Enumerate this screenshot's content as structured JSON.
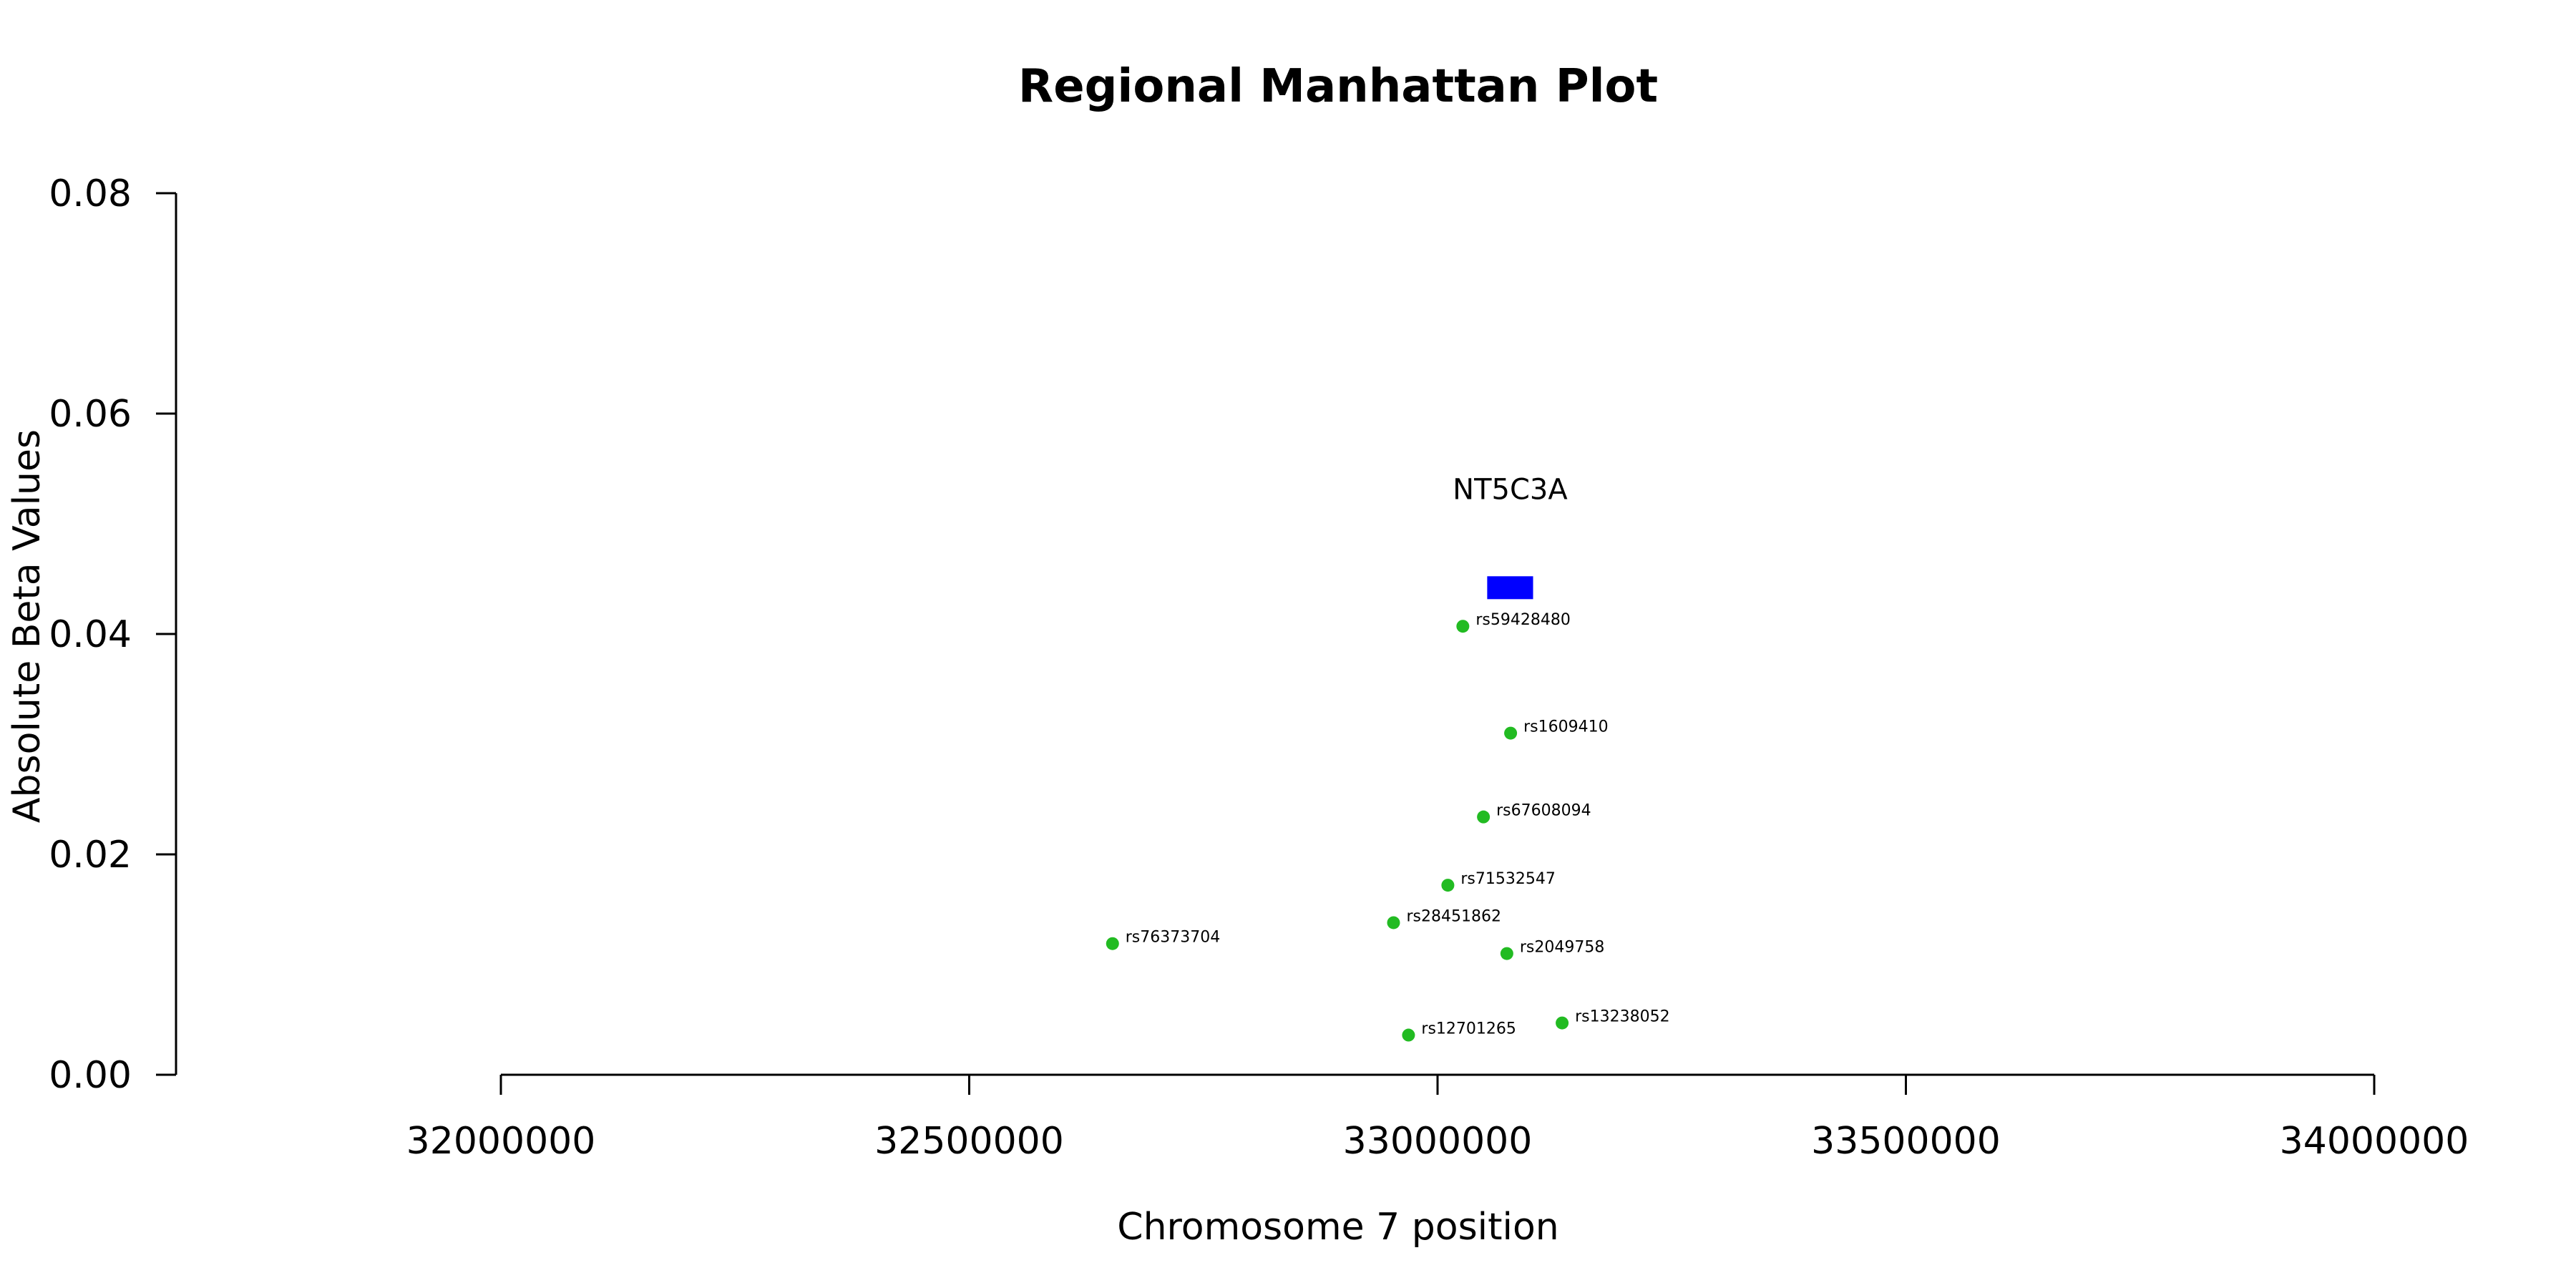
{
  "chart_data": {
    "type": "scatter",
    "title": "Regional Manhattan Plot",
    "xlabel": "Chromosome 7 position",
    "ylabel": "Absolute Beta Values",
    "xlim": [
      32000000,
      34000000
    ],
    "ylim": [
      0,
      0.08
    ],
    "x_ticks": [
      32000000,
      32500000,
      33000000,
      33500000,
      34000000
    ],
    "x_tick_labels": [
      "32000000",
      "32500000",
      "33000000",
      "33500000",
      "34000000"
    ],
    "y_ticks": [
      0,
      0.02,
      0.04,
      0.06,
      0.08
    ],
    "y_tick_labels": [
      "0.00",
      "0.02",
      "0.04",
      "0.06",
      "0.08"
    ],
    "grid": false,
    "point_color": "#22bb22",
    "points": [
      {
        "label": "rs59428480",
        "x": 33027000,
        "y": 0.0407
      },
      {
        "label": "rs1609410",
        "x": 33078000,
        "y": 0.031
      },
      {
        "label": "rs67608094",
        "x": 33049000,
        "y": 0.0234
      },
      {
        "label": "rs71532547",
        "x": 33011000,
        "y": 0.0172
      },
      {
        "label": "rs28451862",
        "x": 32953000,
        "y": 0.0138
      },
      {
        "label": "rs76373704",
        "x": 32653000,
        "y": 0.0119
      },
      {
        "label": "rs2049758",
        "x": 33074000,
        "y": 0.011
      },
      {
        "label": "rs13238052",
        "x": 33133000,
        "y": 0.0047
      },
      {
        "label": "rs12701265",
        "x": 32969000,
        "y": 0.0036
      }
    ],
    "gene": {
      "name": "NT5C3A",
      "start": 33053000,
      "end": 33102000,
      "y": 0.0442,
      "color": "#0000ff"
    }
  }
}
